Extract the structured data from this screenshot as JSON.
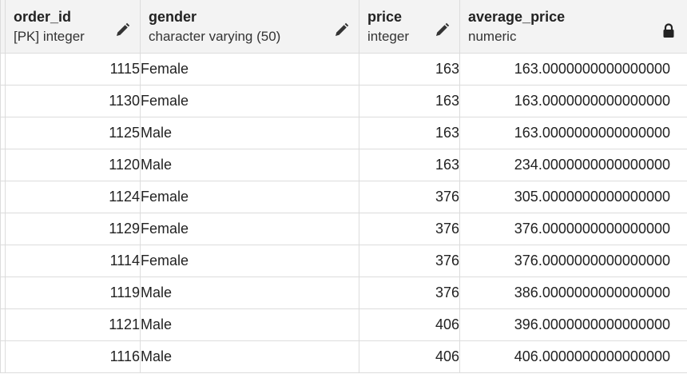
{
  "columns": [
    {
      "name": "order_id",
      "type": "[PK] integer",
      "icon": "pencil-icon"
    },
    {
      "name": "gender",
      "type": "character varying (50)",
      "icon": "pencil-icon"
    },
    {
      "name": "price",
      "type": "integer",
      "icon": "pencil-icon"
    },
    {
      "name": "average_price",
      "type": "numeric",
      "icon": "lock-icon"
    }
  ],
  "rows": [
    {
      "order_id": "1115",
      "gender": "Female",
      "price": "163",
      "average_price": "163.0000000000000000"
    },
    {
      "order_id": "1130",
      "gender": "Female",
      "price": "163",
      "average_price": "163.0000000000000000"
    },
    {
      "order_id": "1125",
      "gender": "Male",
      "price": "163",
      "average_price": "163.0000000000000000"
    },
    {
      "order_id": "1120",
      "gender": "Male",
      "price": "163",
      "average_price": "234.0000000000000000"
    },
    {
      "order_id": "1124",
      "gender": "Female",
      "price": "376",
      "average_price": "305.0000000000000000"
    },
    {
      "order_id": "1129",
      "gender": "Female",
      "price": "376",
      "average_price": "376.0000000000000000"
    },
    {
      "order_id": "1114",
      "gender": "Female",
      "price": "376",
      "average_price": "376.0000000000000000"
    },
    {
      "order_id": "1119",
      "gender": "Male",
      "price": "376",
      "average_price": "386.0000000000000000"
    },
    {
      "order_id": "1121",
      "gender": "Male",
      "price": "406",
      "average_price": "396.0000000000000000"
    },
    {
      "order_id": "1116",
      "gender": "Male",
      "price": "406",
      "average_price": "406.0000000000000000"
    }
  ]
}
